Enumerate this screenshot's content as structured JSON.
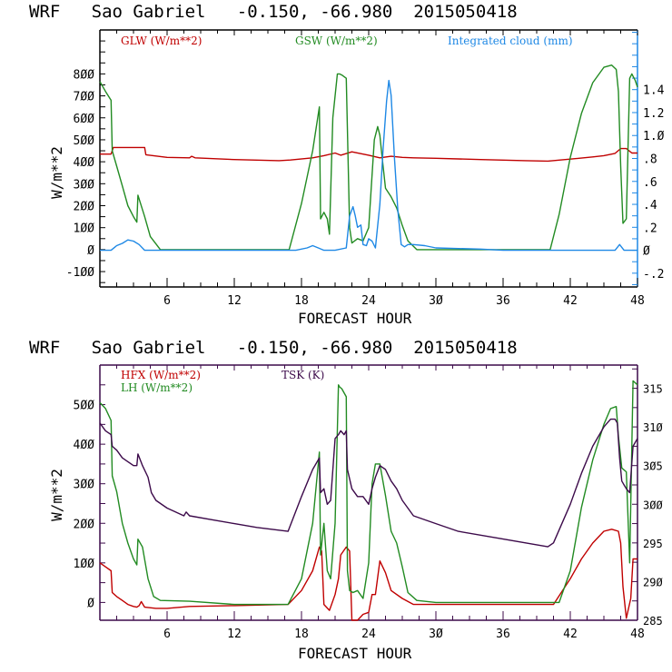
{
  "chart_data": [
    {
      "type": "line",
      "title": "WRF   Sao Gabriel   -0.150, -66.980  2015050418",
      "xlabel": "FORECAST HOUR",
      "ylabel": "W/m**2",
      "y2label": "",
      "xlim": [
        0,
        48
      ],
      "ylim": [
        -170,
        1000
      ],
      "y2lim": [
        -0.32,
        1.92
      ],
      "xticks": [
        6,
        12,
        18,
        24,
        30,
        36,
        42,
        48
      ],
      "yticks": [
        -100,
        0,
        100,
        200,
        300,
        400,
        500,
        600,
        700,
        800
      ],
      "y2ticks": [
        -0.2,
        0,
        0.2,
        0.4,
        0.6,
        0.8,
        1.0,
        1.2,
        1.4
      ],
      "y2tick_labels": [
        "-.2",
        "0",
        ".2",
        ".4",
        ".6",
        ".8",
        "1.0",
        "1.2",
        "1.4"
      ],
      "axis_color": "#1e88e5",
      "series": [
        {
          "name": "GLW (W/m**2)",
          "axis": "left",
          "color": "#c00000",
          "x": [
            0,
            1.0,
            1.2,
            4.0,
            4.1,
            6,
            8,
            8.2,
            8.5,
            12,
            16,
            17,
            19,
            20,
            21,
            21.5,
            22.5,
            23.5,
            24,
            25,
            26,
            27,
            28,
            30,
            34,
            38,
            40,
            42,
            44,
            45,
            46,
            46.5,
            47,
            47.5,
            48
          ],
          "values": [
            435,
            435,
            465,
            465,
            432,
            420,
            418,
            425,
            418,
            410,
            405,
            408,
            418,
            428,
            440,
            430,
            445,
            435,
            430,
            418,
            425,
            420,
            418,
            416,
            410,
            405,
            403,
            412,
            422,
            428,
            438,
            460,
            460,
            440,
            440
          ]
        },
        {
          "name": "GSW (W/m**2)",
          "axis": "left",
          "color": "#228b22",
          "x": [
            0,
            0.5,
            1.0,
            1.1,
            1.5,
            2.0,
            2.5,
            3.0,
            3.3,
            3.4,
            4.0,
            4.5,
            5.4,
            16.9,
            18,
            19,
            19.6,
            19.7,
            20.0,
            20.3,
            20.5,
            20.8,
            21.2,
            21.4,
            21.6,
            22.0,
            22.3,
            22.5,
            23.0,
            23.5,
            24.0,
            24.5,
            24.8,
            25.0,
            25.2,
            25.5,
            26.0,
            26.5,
            27.0,
            27.5,
            28.3,
            30,
            40.2,
            41,
            42,
            43,
            44,
            45,
            45.7,
            46.1,
            46.3,
            46.5,
            46.7,
            47.0,
            47.3,
            47.5,
            47.8,
            48
          ],
          "values": [
            765,
            720,
            680,
            450,
            380,
            290,
            200,
            150,
            125,
            248,
            150,
            60,
            0,
            0,
            210,
            450,
            650,
            140,
            170,
            140,
            70,
            600,
            800,
            800,
            795,
            780,
            100,
            30,
            50,
            40,
            100,
            500,
            560,
            520,
            420,
            280,
            240,
            190,
            110,
            40,
            0,
            0,
            0,
            160,
            420,
            620,
            760,
            830,
            840,
            820,
            720,
            380,
            120,
            140,
            780,
            800,
            770,
            740
          ]
        },
        {
          "name": "Integrated cloud (mm)",
          "axis": "right",
          "color": "#1e88e5",
          "x": [
            0,
            1.0,
            1.5,
            2.0,
            2.5,
            3.0,
            3.5,
            4.0,
            8,
            16,
            17.5,
            18.5,
            19.0,
            19.5,
            20.0,
            21.0,
            22.0,
            22.3,
            22.6,
            22.8,
            23.0,
            23.3,
            23.5,
            23.8,
            24.0,
            24.3,
            24.6,
            25.0,
            25.3,
            25.6,
            25.8,
            26.0,
            26.3,
            26.6,
            26.9,
            27.2,
            27.5,
            28.0,
            29,
            30,
            34,
            36,
            40,
            46,
            46.4,
            46.8,
            48
          ],
          "values": [
            0,
            0,
            0.04,
            0.06,
            0.09,
            0.08,
            0.05,
            0,
            0,
            0,
            0,
            0.02,
            0.04,
            0.02,
            0,
            0,
            0.02,
            0.3,
            0.38,
            0.3,
            0.2,
            0.22,
            0.05,
            0.04,
            0.1,
            0.08,
            0.02,
            0.4,
            0.9,
            1.3,
            1.48,
            1.35,
            0.8,
            0.35,
            0.05,
            0.03,
            0.05,
            0.05,
            0.04,
            0.02,
            0.01,
            0,
            0,
            0,
            0.05,
            0,
            0
          ]
        }
      ],
      "legend": [
        "GLW (W/m**2)",
        "GSW (W/m**2)",
        "Integrated cloud (mm)"
      ],
      "legend_placement": "top",
      "grid": false
    },
    {
      "type": "line",
      "title": "WRF   Sao Gabriel   -0.150, -66.980  2015050418",
      "xlabel": "FORECAST HOUR",
      "ylabel": "W/m**2",
      "xlim": [
        0,
        48
      ],
      "ylim": [
        -45,
        600
      ],
      "y2lim": [
        285,
        318
      ],
      "xticks": [
        6,
        12,
        18,
        24,
        30,
        36,
        42,
        48
      ],
      "yticks": [
        0,
        100,
        200,
        300,
        400,
        500
      ],
      "y2ticks": [
        285,
        290,
        295,
        300,
        305,
        310,
        315
      ],
      "axis_color": "#3c0a4a",
      "series": [
        {
          "name": "HFX (W/m**2)",
          "axis": "left",
          "color": "#c00000",
          "x": [
            0,
            0.5,
            1.0,
            1.1,
            1.5,
            2.0,
            2.5,
            3.0,
            3.3,
            3.5,
            3.7,
            4.0,
            5.0,
            6,
            8,
            12,
            16.8,
            18,
            19,
            19.6,
            19.8,
            20.0,
            20.5,
            21.0,
            21.3,
            21.5,
            22.0,
            22.3,
            22.5,
            23.0,
            23.5,
            24.0,
            24.3,
            24.6,
            25.0,
            25.5,
            26.0,
            27,
            28,
            30,
            40.5,
            42,
            43,
            44,
            45,
            45.7,
            46.3,
            46.5,
            46.7,
            47.0,
            47.4,
            47.6,
            48
          ],
          "values": [
            100,
            90,
            80,
            25,
            15,
            5,
            -5,
            -10,
            -12,
            -8,
            2,
            -12,
            -15,
            -15,
            -10,
            -8,
            -5,
            30,
            80,
            140,
            130,
            -5,
            -20,
            20,
            60,
            120,
            140,
            130,
            -45,
            -45,
            -30,
            -25,
            20,
            20,
            105,
            75,
            30,
            10,
            -5,
            -5,
            -5,
            60,
            110,
            150,
            180,
            185,
            180,
            150,
            40,
            -40,
            10,
            110,
            110
          ]
        },
        {
          "name": "LH (W/m**2)",
          "axis": "left",
          "color": "#228b22",
          "x": [
            0,
            0.5,
            1.0,
            1.1,
            1.5,
            2.0,
            2.5,
            3.0,
            3.3,
            3.4,
            3.8,
            4.3,
            4.8,
            5.4,
            8,
            12,
            16.8,
            18,
            19,
            19.6,
            19.7,
            20.0,
            20.3,
            20.6,
            21.0,
            21.3,
            21.4,
            21.6,
            22.0,
            22.1,
            22.3,
            22.6,
            23.0,
            23.5,
            24.0,
            24.3,
            24.6,
            25.0,
            25.5,
            26.0,
            26.5,
            27.0,
            27.5,
            28.3,
            30,
            40.2,
            41,
            42,
            43,
            44,
            45,
            45.6,
            46.1,
            46.3,
            46.6,
            47.0,
            47.3,
            47.6,
            48
          ],
          "values": [
            505,
            490,
            460,
            320,
            280,
            200,
            150,
            110,
            95,
            160,
            140,
            60,
            15,
            5,
            3,
            -5,
            -5,
            60,
            200,
            380,
            120,
            200,
            80,
            60,
            200,
            550,
            545,
            540,
            520,
            80,
            30,
            25,
            30,
            10,
            100,
            300,
            350,
            350,
            270,
            180,
            150,
            90,
            25,
            5,
            0,
            0,
            0,
            80,
            240,
            360,
            450,
            490,
            495,
            420,
            340,
            330,
            100,
            560,
            550
          ]
        },
        {
          "name": "TSK (K)",
          "axis": "right",
          "color": "#3c0a4a",
          "x": [
            0,
            0.5,
            1.0,
            1.1,
            1.5,
            2.0,
            2.5,
            3.0,
            3.3,
            3.4,
            3.8,
            4.3,
            4.6,
            5.0,
            6,
            7.5,
            7.7,
            8,
            10,
            12,
            14,
            16.8,
            18,
            19,
            19.6,
            19.7,
            20.0,
            20.3,
            20.6,
            21.0,
            21.3,
            21.5,
            21.8,
            22.0,
            22.1,
            22.5,
            23.0,
            23.5,
            24.0,
            24.3,
            24.6,
            25.0,
            25.5,
            26.0,
            26.5,
            27,
            28,
            30,
            32,
            36,
            40,
            40.5,
            42,
            43,
            44,
            45,
            45.6,
            46,
            46.2,
            46.4,
            46.6,
            46.8,
            47.0,
            47.3,
            47.6,
            48
          ],
          "values": [
            310.5,
            309.5,
            309,
            307.5,
            307,
            306,
            305.5,
            305,
            305,
            306.5,
            305,
            303.5,
            301.5,
            300.5,
            299.5,
            298.5,
            299,
            298.5,
            298,
            297.5,
            297,
            296.5,
            301,
            304.5,
            306,
            301.5,
            302,
            300,
            300.5,
            308.5,
            309,
            309.5,
            309,
            309.5,
            304.5,
            302,
            301,
            301,
            300,
            302,
            303.5,
            305,
            304.5,
            303,
            302,
            300.5,
            298.5,
            297.5,
            296.5,
            295.5,
            294.5,
            295,
            300,
            304,
            307.5,
            310,
            311,
            311,
            310.5,
            306,
            303,
            302.5,
            302,
            301.5,
            307.5,
            308.5
          ]
        }
      ],
      "legend": [
        "HFX (W/m**2)",
        "LH (W/m**2)",
        "TSK (K)"
      ],
      "legend_placement": "top-left",
      "grid": false
    }
  ]
}
